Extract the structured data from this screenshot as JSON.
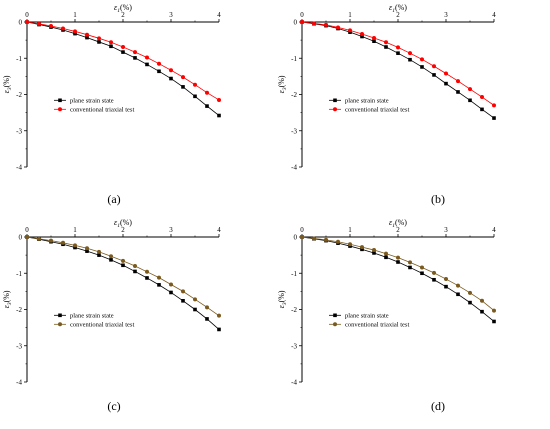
{
  "figure": {
    "panels": [
      {
        "label": "(a)",
        "chart_data": {
          "type": "line",
          "xlabel": "ε1(%)",
          "ylabel": "ε3(%)",
          "xlim": [
            0,
            4
          ],
          "ylim": [
            -4,
            0
          ],
          "x_ticks": [
            "0",
            "1",
            "2",
            "3",
            "4"
          ],
          "y_ticks": [
            "0",
            "-1",
            "-2",
            "-3",
            "-4"
          ],
          "legend_position": "middle-left",
          "x": [
            0,
            0.25,
            0.5,
            0.75,
            1.0,
            1.25,
            1.5,
            1.75,
            2.0,
            2.25,
            2.5,
            2.75,
            3.0,
            3.25,
            3.5,
            3.75,
            4.0
          ],
          "series": [
            {
              "name": "plane strain state",
              "color": "#000000",
              "marker": "square",
              "values": [
                0,
                -0.07,
                -0.14,
                -0.22,
                -0.32,
                -0.43,
                -0.55,
                -0.67,
                -0.83,
                -0.99,
                -1.17,
                -1.36,
                -1.56,
                -1.79,
                -2.05,
                -2.32,
                -2.58
              ]
            },
            {
              "name": "conventional triaxial test",
              "color": "#ff0000",
              "marker": "circle",
              "values": [
                0,
                -0.05,
                -0.11,
                -0.18,
                -0.26,
                -0.35,
                -0.45,
                -0.56,
                -0.69,
                -0.83,
                -0.98,
                -1.15,
                -1.33,
                -1.52,
                -1.73,
                -1.95,
                -2.15
              ]
            }
          ]
        }
      },
      {
        "label": "(b)",
        "chart_data": {
          "type": "line",
          "xlabel": "ε1(%)",
          "ylabel": "ε3(%)",
          "xlim": [
            0,
            4
          ],
          "ylim": [
            -4,
            0
          ],
          "x_ticks": [
            "0",
            "1",
            "2",
            "3",
            "4"
          ],
          "y_ticks": [
            "0",
            "-1",
            "-2",
            "-3",
            "-4"
          ],
          "legend_position": "middle-left",
          "x": [
            0,
            0.25,
            0.5,
            0.75,
            1.0,
            1.25,
            1.5,
            1.75,
            2.0,
            2.25,
            2.5,
            2.75,
            3.0,
            3.25,
            3.5,
            3.75,
            4.0
          ],
          "series": [
            {
              "name": "plane strain state",
              "color": "#000000",
              "marker": "square",
              "values": [
                0,
                -0.05,
                -0.1,
                -0.18,
                -0.28,
                -0.4,
                -0.53,
                -0.69,
                -0.86,
                -1.04,
                -1.24,
                -1.46,
                -1.7,
                -1.93,
                -2.16,
                -2.41,
                -2.65
              ]
            },
            {
              "name": "conventional triaxial test",
              "color": "#ff0000",
              "marker": "circle",
              "values": [
                0,
                -0.04,
                -0.08,
                -0.15,
                -0.23,
                -0.33,
                -0.44,
                -0.56,
                -0.7,
                -0.86,
                -1.03,
                -1.22,
                -1.42,
                -1.63,
                -1.85,
                -2.07,
                -2.3
              ]
            }
          ]
        }
      },
      {
        "label": "(c)",
        "chart_data": {
          "type": "line",
          "xlabel": "ε1(%)",
          "ylabel": "ε3(%)",
          "xlim": [
            0,
            4
          ],
          "ylim": [
            -4,
            0
          ],
          "x_ticks": [
            "0",
            "1",
            "2",
            "3",
            "4"
          ],
          "y_ticks": [
            "0",
            "-1",
            "-2",
            "-3",
            "-4"
          ],
          "legend_position": "middle-left",
          "x": [
            0,
            0.25,
            0.5,
            0.75,
            1.0,
            1.25,
            1.5,
            1.75,
            2.0,
            2.25,
            2.5,
            2.75,
            3.0,
            3.25,
            3.5,
            3.75,
            4.0
          ],
          "series": [
            {
              "name": "plane strain state",
              "color": "#000000",
              "marker": "square",
              "values": [
                0,
                -0.06,
                -0.13,
                -0.2,
                -0.29,
                -0.39,
                -0.5,
                -0.63,
                -0.78,
                -0.95,
                -1.13,
                -1.32,
                -1.53,
                -1.76,
                -2.0,
                -2.26,
                -2.55
              ]
            },
            {
              "name": "conventional triaxial test",
              "color": "#7a5a1e",
              "marker": "circle",
              "values": [
                0,
                -0.05,
                -0.1,
                -0.16,
                -0.23,
                -0.31,
                -0.41,
                -0.53,
                -0.66,
                -0.8,
                -0.96,
                -1.12,
                -1.31,
                -1.5,
                -1.72,
                -1.94,
                -2.17
              ]
            }
          ]
        }
      },
      {
        "label": "(d)",
        "chart_data": {
          "type": "line",
          "xlabel": "ε1(%)",
          "ylabel": "ε3(%)",
          "xlim": [
            0,
            4
          ],
          "ylim": [
            -4,
            0
          ],
          "x_ticks": [
            "0",
            "1",
            "2",
            "3",
            "4"
          ],
          "y_ticks": [
            "0",
            "-1",
            "-2",
            "-3",
            "-4"
          ],
          "legend_position": "middle-left",
          "x": [
            0,
            0.25,
            0.5,
            0.75,
            1.0,
            1.25,
            1.5,
            1.75,
            2.0,
            2.25,
            2.5,
            2.75,
            3.0,
            3.25,
            3.5,
            3.75,
            4.0
          ],
          "series": [
            {
              "name": "plane strain state",
              "color": "#000000",
              "marker": "square",
              "values": [
                0,
                -0.05,
                -0.1,
                -0.17,
                -0.25,
                -0.34,
                -0.44,
                -0.56,
                -0.69,
                -0.84,
                -1.0,
                -1.18,
                -1.37,
                -1.58,
                -1.81,
                -2.06,
                -2.33
              ]
            },
            {
              "name": "conventional triaxial test",
              "color": "#7a5a1e",
              "marker": "circle",
              "values": [
                0,
                -0.04,
                -0.08,
                -0.13,
                -0.2,
                -0.28,
                -0.36,
                -0.46,
                -0.57,
                -0.7,
                -0.84,
                -0.99,
                -1.16,
                -1.34,
                -1.54,
                -1.76,
                -2.03
              ]
            }
          ]
        }
      }
    ]
  }
}
